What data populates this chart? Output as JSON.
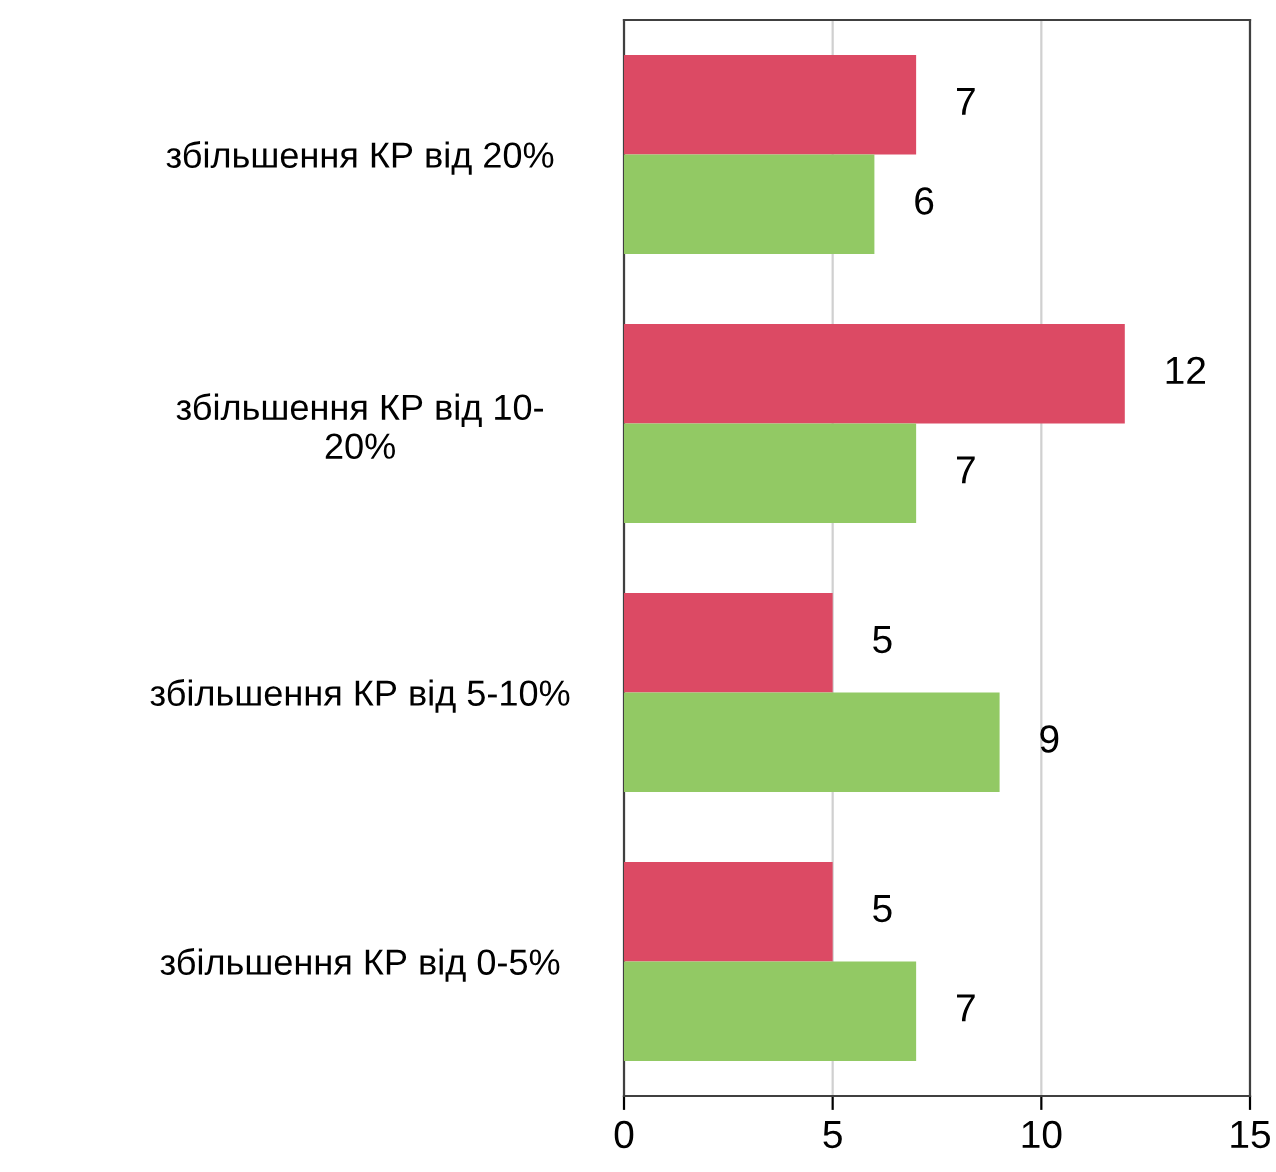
{
  "chart_data": {
    "type": "bar",
    "orientation": "horizontal",
    "categories": [
      "збільшення КР від 20%",
      "збільшення КР від 10-\n20%",
      "збільшення КР від 5-10%",
      "збільшення КР від 0-5%"
    ],
    "series": [
      {
        "color": "#dc4a64",
        "values": [
          7,
          12,
          5,
          5
        ]
      },
      {
        "color": "#92c964",
        "values": [
          6,
          7,
          9,
          7
        ]
      }
    ],
    "xlim": [
      0,
      15
    ],
    "xticks": [
      0,
      5,
      10,
      15
    ],
    "grid": "x",
    "data_labels": true
  }
}
